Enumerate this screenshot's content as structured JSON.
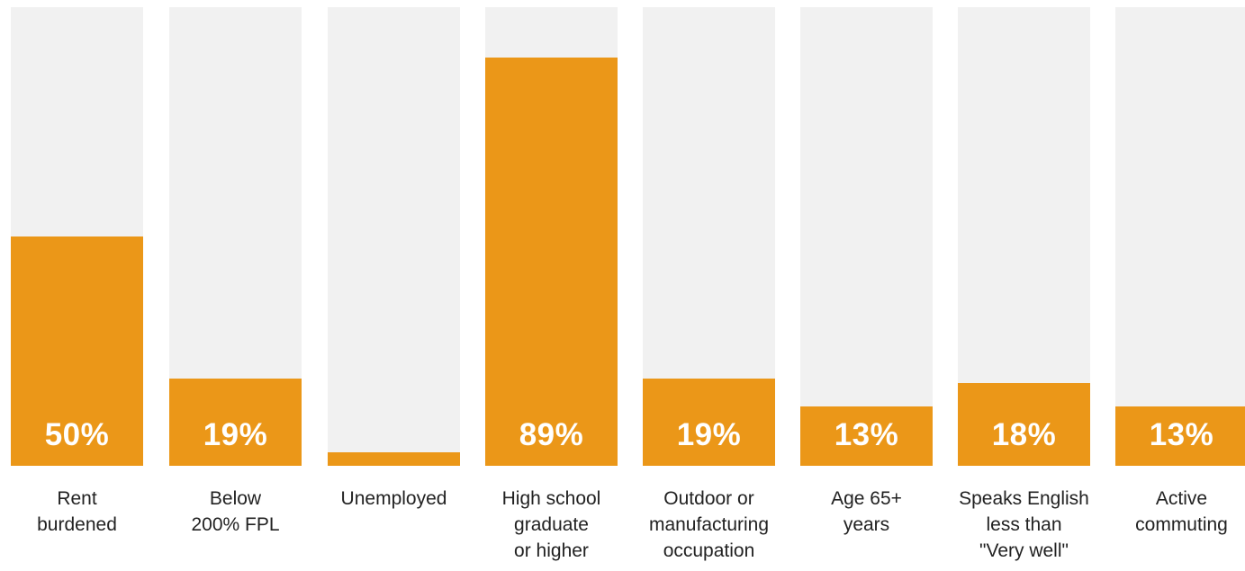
{
  "chart_data": {
    "type": "bar",
    "title": "",
    "xlabel": "",
    "ylabel": "",
    "ylim": [
      0,
      100
    ],
    "colors": {
      "fill": "#eb9718",
      "track": "#f1f1f1",
      "value_text": "#ffffff",
      "label_text": "#222222"
    },
    "categories": [
      "Rent\nburdened",
      "Below\n200% FPL",
      "Unemployed",
      "High school\ngraduate\nor higher",
      "Outdoor or\nmanufacturing\noccupation",
      "Age 65+\nyears",
      "Speaks English\nless than\n\"Very well\"",
      "Active\ncommuting"
    ],
    "values": [
      50,
      19,
      3,
      89,
      19,
      13,
      18,
      13
    ],
    "value_labels": [
      "50%",
      "19%",
      "",
      "89%",
      "19%",
      "13%",
      "18%",
      "13%"
    ]
  }
}
